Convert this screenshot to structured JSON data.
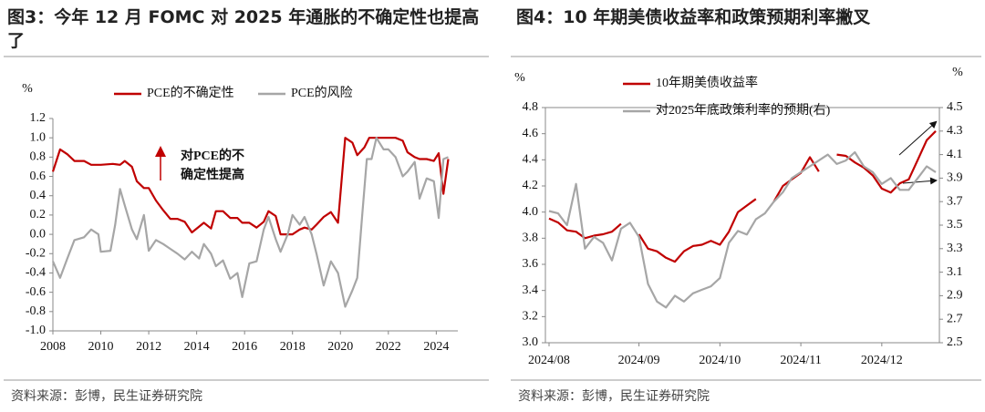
{
  "chart_data": [
    {
      "type": "line",
      "title": "图3：今年 12 月 FOMC 对 2025 年通胀的不确定性也提高了",
      "y_label": "%",
      "annotation": [
        "对PCE的不",
        "确定性提高"
      ],
      "source": "资料来源：彭博，民生证券研究院",
      "xlim": [
        2008,
        2024.9
      ],
      "xticks": [
        2008,
        2010,
        2012,
        2014,
        2016,
        2018,
        2020,
        2022,
        2024
      ],
      "ylim": [
        -1.0,
        1.2
      ],
      "yticks": [
        {
          "value": -1.0,
          "label": "-1.0"
        },
        -0.8,
        -0.6,
        -0.4,
        -0.2,
        {
          "value": 0.0,
          "label": "0.0"
        },
        0.2,
        0.4,
        0.6,
        0.8,
        {
          "value": 1.0,
          "label": "1.0"
        },
        1.2
      ],
      "series": [
        {
          "name": "PCE的不确定性",
          "color": "#c00000",
          "x": [
            2008.0,
            2008.3,
            2008.6,
            2008.9,
            2009.3,
            2009.6,
            2010.0,
            2010.5,
            2010.8,
            2011.0,
            2011.3,
            2011.5,
            2011.8,
            2012.0,
            2012.3,
            2012.6,
            2012.9,
            2013.2,
            2013.5,
            2013.8,
            2014.1,
            2014.3,
            2014.6,
            2014.8,
            2015.1,
            2015.4,
            2015.7,
            2015.9,
            2016.2,
            2016.5,
            2016.8,
            2017.0,
            2017.3,
            2017.5,
            2017.8,
            2018.0,
            2018.3,
            2018.5,
            2018.8,
            2019.0,
            2019.3,
            2019.6,
            2019.9,
            2020.2,
            2020.5,
            2020.7,
            2021.0,
            2021.2,
            2021.5,
            2021.8,
            2022.0,
            2022.3,
            2022.6,
            2022.8,
            2023.1,
            2023.3,
            2023.6,
            2023.9,
            2024.1,
            2024.3,
            2024.5
          ],
          "values": [
            0.65,
            0.88,
            0.83,
            0.76,
            0.76,
            0.72,
            0.72,
            0.73,
            0.72,
            0.76,
            0.7,
            0.55,
            0.48,
            0.48,
            0.35,
            0.25,
            0.16,
            0.16,
            0.13,
            0.02,
            0.08,
            0.12,
            0.06,
            0.24,
            0.24,
            0.17,
            0.17,
            0.12,
            0.12,
            0.07,
            0.13,
            0.24,
            0.19,
            0.0,
            0.0,
            0.0,
            0.05,
            0.07,
            0.05,
            0.1,
            0.18,
            0.23,
            0.12,
            1.0,
            0.95,
            0.82,
            0.9,
            1.0,
            1.0,
            1.0,
            1.0,
            1.0,
            0.97,
            0.85,
            0.8,
            0.78,
            0.78,
            0.76,
            0.84,
            0.42,
            0.78
          ]
        },
        {
          "name": "PCE的风险",
          "color": "#a6a6a6",
          "x": [
            2008.0,
            2008.3,
            2008.6,
            2008.9,
            2009.3,
            2009.6,
            2009.9,
            2010.0,
            2010.4,
            2010.6,
            2010.8,
            2011.0,
            2011.3,
            2011.5,
            2011.8,
            2012.0,
            2012.3,
            2012.6,
            2012.9,
            2013.2,
            2013.5,
            2013.8,
            2014.1,
            2014.3,
            2014.6,
            2014.8,
            2015.1,
            2015.4,
            2015.7,
            2015.9,
            2016.2,
            2016.5,
            2016.8,
            2017.0,
            2017.3,
            2017.5,
            2017.8,
            2018.0,
            2018.3,
            2018.5,
            2018.8,
            2019.0,
            2019.3,
            2019.6,
            2019.9,
            2020.2,
            2020.5,
            2020.7,
            2020.9,
            2021.1,
            2021.3,
            2021.5,
            2021.8,
            2022.0,
            2022.3,
            2022.6,
            2022.8,
            2023.1,
            2023.3,
            2023.6,
            2023.9,
            2024.1,
            2024.3,
            2024.5
          ],
          "values": [
            -0.28,
            -0.45,
            -0.25,
            -0.06,
            -0.03,
            0.05,
            0.0,
            -0.18,
            -0.17,
            0.1,
            0.47,
            0.3,
            0.05,
            -0.05,
            0.2,
            -0.17,
            -0.06,
            -0.1,
            -0.15,
            -0.2,
            -0.26,
            -0.18,
            -0.25,
            -0.1,
            -0.2,
            -0.33,
            -0.27,
            -0.46,
            -0.4,
            -0.65,
            -0.3,
            -0.28,
            0.05,
            0.18,
            -0.05,
            -0.18,
            0.0,
            0.2,
            0.1,
            0.18,
            0.0,
            -0.2,
            -0.53,
            -0.28,
            -0.4,
            -0.75,
            -0.58,
            -0.45,
            0.17,
            0.78,
            0.78,
            1.0,
            0.88,
            0.88,
            0.8,
            0.6,
            0.65,
            0.75,
            0.37,
            0.58,
            0.55,
            0.17,
            0.78,
            0.8
          ]
        }
      ]
    },
    {
      "type": "line",
      "title": "图4：10 年期美债收益率和政策预期利率撇叉",
      "y_label": "%",
      "y2_label": "%",
      "source": "资料来源：彭博，民生证券研究院",
      "categories": [
        "2024/08",
        null,
        null,
        null,
        null,
        null,
        null,
        null,
        null,
        null,
        "2024/09",
        null,
        null,
        null,
        null,
        null,
        null,
        null,
        null,
        "2024/10",
        null,
        null,
        null,
        null,
        null,
        null,
        null,
        null,
        "2024/11",
        null,
        null,
        null,
        null,
        null,
        null,
        null,
        null,
        "2024/12",
        null,
        null,
        null,
        null,
        null,
        null
      ],
      "ylim": [
        3.0,
        4.8
      ],
      "yticks": [
        {
          "value": 3.0,
          "label": "3.0"
        },
        3.2,
        3.4,
        3.6,
        3.8,
        {
          "value": 4.0,
          "label": "4.0"
        },
        4.2,
        4.4,
        4.6,
        4.8
      ],
      "y2lim": [
        2.5,
        4.5
      ],
      "y2ticks": [
        2.5,
        2.7,
        2.9,
        3.1,
        3.3,
        3.5,
        3.7,
        3.9,
        4.1,
        4.3,
        4.5
      ],
      "series": [
        {
          "name": "10年期美债收益率",
          "color": "#c00000",
          "values": [
            3.95,
            3.92,
            3.86,
            3.85,
            3.8,
            3.82,
            3.83,
            3.85,
            3.91,
            null,
            3.83,
            3.72,
            3.7,
            3.65,
            3.62,
            3.7,
            3.74,
            3.75,
            3.78,
            3.75,
            3.85,
            4.0,
            4.05,
            4.1,
            null,
            4.08,
            4.2,
            4.25,
            4.3,
            4.42,
            4.31,
            null,
            4.44,
            4.43,
            4.38,
            4.34,
            4.28,
            4.18,
            4.15,
            4.22,
            4.25,
            4.4,
            4.55,
            4.62
          ]
        },
        {
          "name": "对2025年底政策利率的预期(右)",
          "color": "#a6a6a6",
          "axis": "y2",
          "values": [
            3.62,
            3.6,
            3.5,
            3.85,
            3.3,
            3.4,
            3.35,
            3.2,
            3.47,
            3.52,
            3.4,
            3.0,
            2.85,
            2.8,
            2.9,
            2.85,
            2.92,
            2.95,
            2.98,
            3.05,
            3.35,
            3.45,
            3.42,
            3.55,
            3.6,
            3.7,
            3.78,
            3.9,
            3.95,
            4.0,
            4.05,
            4.1,
            4.02,
            4.05,
            4.12,
            4.0,
            3.95,
            3.85,
            3.9,
            3.8,
            3.8,
            3.9,
            4.0,
            3.95
          ]
        }
      ]
    }
  ]
}
